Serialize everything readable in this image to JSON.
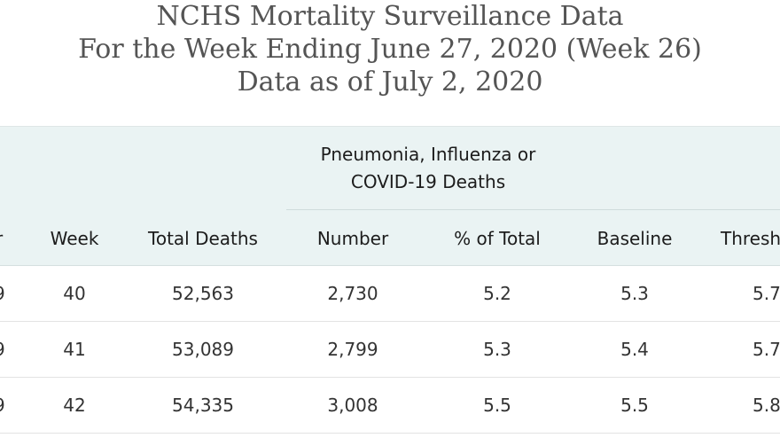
{
  "title": {
    "line1": "NCHS Mortality Surveillance Data",
    "line2": "For the Week Ending June 27, 2020 (Week 26)",
    "line3": "Data as of July 2, 2020"
  },
  "table": {
    "group_header": {
      "line1": "Pneumonia, Influenza or",
      "line2": "COVID-19 Deaths"
    },
    "columns": {
      "year": "r",
      "week": "Week",
      "total_deaths": "Total Deaths",
      "number": "Number",
      "pct_total": "% of Total",
      "baseline": "Baseline",
      "threshold": "Thresh"
    },
    "rows": [
      {
        "year": "9",
        "week": "40",
        "total_deaths": "52,563",
        "number": "2,730",
        "pct_total": "5.2",
        "baseline": "5.3",
        "threshold": "5.7"
      },
      {
        "year": "9",
        "week": "41",
        "total_deaths": "53,089",
        "number": "2,799",
        "pct_total": "5.3",
        "baseline": "5.4",
        "threshold": "5.7"
      },
      {
        "year": "9",
        "week": "42",
        "total_deaths": "54,335",
        "number": "3,008",
        "pct_total": "5.5",
        "baseline": "5.5",
        "threshold": "5.8"
      }
    ]
  },
  "colors": {
    "header_background": "#eaf3f3",
    "title_text": "#545454",
    "body_text": "#333333"
  }
}
